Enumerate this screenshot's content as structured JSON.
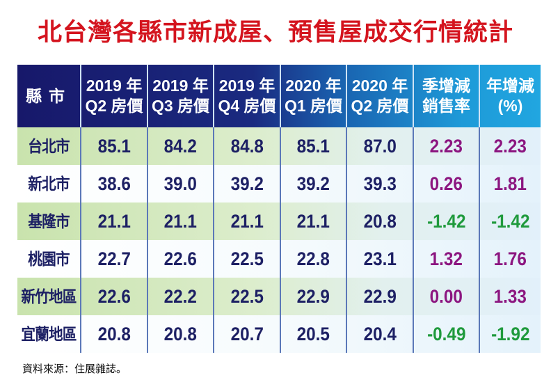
{
  "title": "北台灣各縣市新成屋、預售屋成交行情統計",
  "chart_data": {
    "type": "table",
    "title": "北台灣各縣市新成屋、預售屋成交行情統計",
    "columns": [
      {
        "line1": "縣市",
        "line2": ""
      },
      {
        "line1": "2019 年",
        "line2": "Q2 房價"
      },
      {
        "line1": "2019 年",
        "line2": "Q3 房價"
      },
      {
        "line1": "2019 年",
        "line2": "Q4 房價"
      },
      {
        "line1": "2020 年",
        "line2": "Q1 房價"
      },
      {
        "line1": "2020 年",
        "line2": "Q2 房價"
      },
      {
        "line1": "季增減",
        "line2": "銷售率"
      },
      {
        "line1": "年增減",
        "line2": "(%)"
      }
    ],
    "rows": [
      {
        "name": "台北市",
        "values": [
          "85.1",
          "84.2",
          "84.8",
          "85.1",
          "87.0",
          "2.23",
          "2.23"
        ]
      },
      {
        "name": "新北市",
        "values": [
          "38.6",
          "39.0",
          "39.2",
          "39.2",
          "39.3",
          "0.26",
          "1.81"
        ]
      },
      {
        "name": "基隆市",
        "values": [
          "21.1",
          "21.1",
          "21.1",
          "21.1",
          "20.8",
          "-1.42",
          "-1.42"
        ]
      },
      {
        "name": "桃園市",
        "values": [
          "22.7",
          "22.6",
          "22.5",
          "22.8",
          "23.1",
          "1.32",
          "1.76"
        ]
      },
      {
        "name": "新竹地區",
        "values": [
          "22.6",
          "22.2",
          "22.5",
          "22.9",
          "22.9",
          "0.00",
          "1.33"
        ]
      },
      {
        "name": "宜蘭地區",
        "values": [
          "20.8",
          "20.8",
          "20.7",
          "20.5",
          "20.4",
          "-0.49",
          "-1.92"
        ]
      }
    ]
  },
  "colors": {
    "title": "#d4141e",
    "header_dark": "#17186a",
    "header_light": "#21a6e0",
    "value_text": "#1d2064",
    "positive_change": "#8c1680",
    "negative_change": "#1f9a3c"
  },
  "source": "資料來源：住展雜誌。"
}
